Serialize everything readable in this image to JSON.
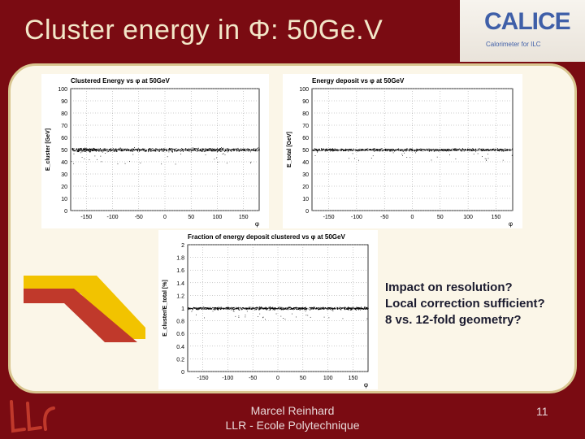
{
  "slide": {
    "title": "Cluster energy in Φ: 50Ge.V",
    "notes": [
      "Impact on resolution?",
      "Local correction sufficient?",
      "8 vs. 12-fold geometry?"
    ],
    "footer": {
      "line1": "Marcel Reinhard",
      "line2": "LLR - Ecole Polytechnique"
    },
    "page_number": "11",
    "logo": {
      "text": "CALICE",
      "subtitle": "Calorimeter for ILC"
    }
  },
  "chart_data": [
    {
      "type": "scatter",
      "title": "Clustered Energy vs φ at 50GeV",
      "ylabel": "E_cluster [GeV]",
      "xlabel": "φ",
      "xlim": [
        -180,
        180
      ],
      "ylim": [
        0,
        100
      ],
      "xticks": [
        "-150",
        "-100",
        "-50",
        "0",
        "50",
        "100",
        "150"
      ],
      "yticks": [
        "0",
        "10",
        "20",
        "30",
        "40",
        "50",
        "60",
        "70",
        "80",
        "90",
        "100"
      ],
      "band": {
        "center": 50,
        "halfwidth": 2
      },
      "grid": true
    },
    {
      "type": "scatter",
      "title": "Energy deposit vs φ at 50GeV",
      "ylabel": "E_total [GeV]",
      "xlabel": "φ",
      "xlim": [
        -180,
        180
      ],
      "ylim": [
        0,
        100
      ],
      "xticks": [
        "-150",
        "-100",
        "-50",
        "0",
        "50",
        "100",
        "150"
      ],
      "yticks": [
        "0",
        "10",
        "20",
        "30",
        "40",
        "50",
        "60",
        "70",
        "80",
        "90",
        "100"
      ],
      "band": {
        "center": 50,
        "halfwidth": 1.5
      },
      "grid": true
    },
    {
      "type": "scatter",
      "title": "Fraction of energy deposit clustered vs φ at 50GeV",
      "ylabel": "E_cluster/E_total [%]",
      "xlabel": "φ",
      "xlim": [
        -180,
        180
      ],
      "ylim": [
        0,
        2
      ],
      "xticks": [
        "-150",
        "-100",
        "-50",
        "0",
        "50",
        "100",
        "150"
      ],
      "yticks": [
        "0",
        "0.2",
        "0.4",
        "0.6",
        "0.8",
        "1",
        "1.2",
        "1.4",
        "1.6",
        "1.8",
        "2"
      ],
      "band": {
        "center": 1.0,
        "halfwidth": 0.03
      },
      "grid": true
    }
  ]
}
